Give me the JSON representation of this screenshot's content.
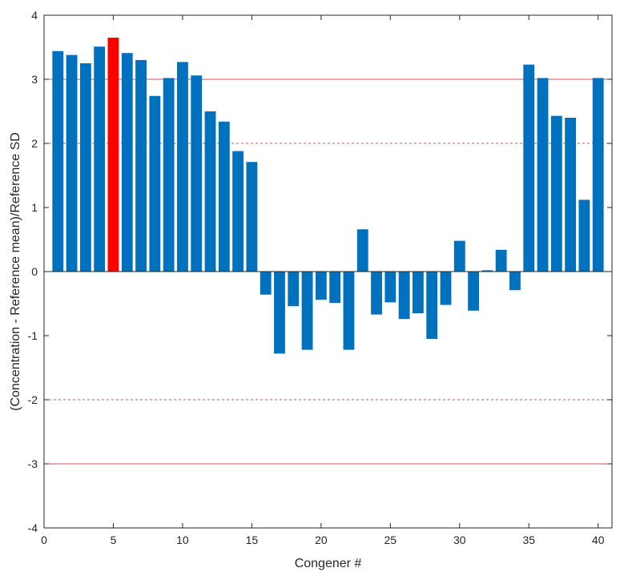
{
  "chart_data": {
    "type": "bar",
    "title": "",
    "xlabel": "Congener #",
    "ylabel": "(Concentration - Reference mean)/Reference SD",
    "xlim": [
      0,
      41
    ],
    "ylim": [
      -4,
      4
    ],
    "x_ticks": [
      0,
      5,
      10,
      15,
      20,
      25,
      30,
      35,
      40
    ],
    "y_ticks": [
      -4,
      -3,
      -2,
      -1,
      0,
      1,
      2,
      3,
      4
    ],
    "grid": false,
    "bar_color": "#0072BD",
    "highlight_color": "#FF0000",
    "reference_color": "#D9534F",
    "highlighted_x": [
      5
    ],
    "x": [
      1,
      2,
      3,
      4,
      5,
      6,
      7,
      8,
      9,
      10,
      11,
      12,
      13,
      14,
      15,
      16,
      17,
      18,
      19,
      20,
      21,
      22,
      23,
      24,
      25,
      26,
      27,
      28,
      29,
      30,
      31,
      32,
      33,
      34,
      35,
      36,
      37,
      38,
      39,
      40
    ],
    "values": [
      3.44,
      3.38,
      3.25,
      3.51,
      3.65,
      3.41,
      3.3,
      2.74,
      3.02,
      3.27,
      3.06,
      2.5,
      2.34,
      1.88,
      1.71,
      -0.36,
      -1.28,
      -0.54,
      -1.22,
      -0.44,
      -0.49,
      -1.22,
      0.66,
      -0.67,
      -0.48,
      -0.74,
      -0.65,
      -1.05,
      -0.52,
      0.48,
      -0.61,
      0.02,
      0.34,
      -0.29,
      3.23,
      3.02,
      2.43,
      2.4,
      1.12,
      3.02
    ],
    "reference_lines": [
      {
        "y": 3,
        "style": "solid"
      },
      {
        "y": -3,
        "style": "solid"
      },
      {
        "y": 2,
        "style": "dashed"
      },
      {
        "y": -2,
        "style": "dashed"
      }
    ]
  }
}
